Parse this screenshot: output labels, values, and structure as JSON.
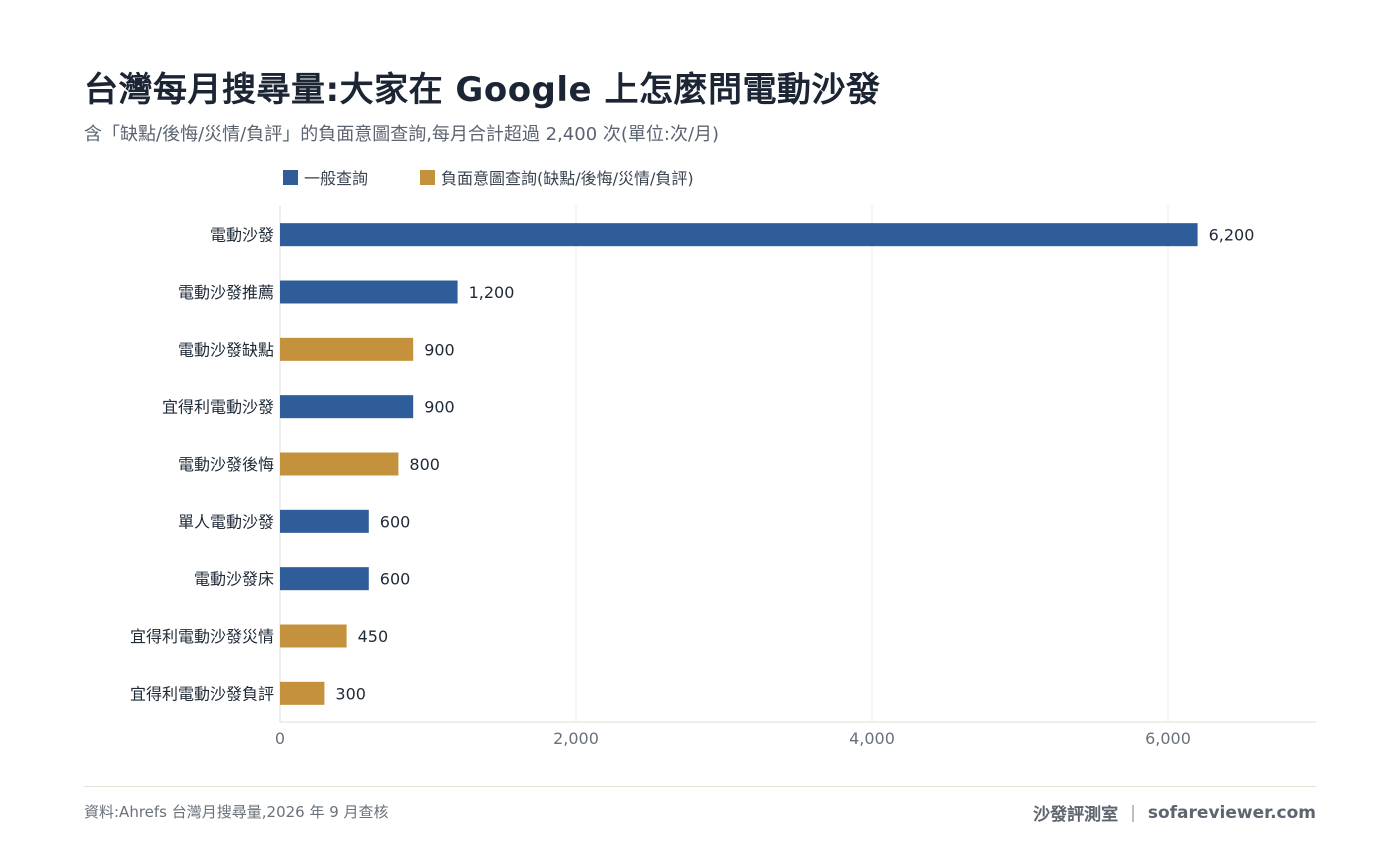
{
  "header": {
    "title": "台灣每月搜尋量:大家在 Google 上怎麼問電動沙發",
    "subtitle": "含「缺點/後悔/災情/負評」的負面意圖查詢,每月合計超過 2,400 次(單位:次/月)"
  },
  "legend": [
    {
      "label": "一般查詢",
      "color": "#2f5d9a"
    },
    {
      "label": "負面意圖查詢(缺點/後悔/災情/負評)",
      "color": "#c4913c"
    }
  ],
  "chart_data": {
    "type": "bar",
    "orientation": "horizontal",
    "title": "台灣每月搜尋量:大家在 Google 上怎麼問電動沙發",
    "xlim": [
      0,
      7000
    ],
    "x_ticks": [
      0,
      2000,
      4000,
      6000
    ],
    "x_tick_labels": [
      "0",
      "2,000",
      "4,000",
      "6,000"
    ],
    "grid": "vertical",
    "legend_position": "top-left",
    "categories": [
      "電動沙發",
      "電動沙發推薦",
      "電動沙發缺點",
      "宜得利電動沙發",
      "電動沙發後悔",
      "單人電動沙發",
      "電動沙發床",
      "宜得利電動沙發災情",
      "宜得利電動沙發負評"
    ],
    "values": [
      6200,
      1200,
      900,
      900,
      800,
      600,
      600,
      450,
      300
    ],
    "value_labels": [
      "6,200",
      "1,200",
      "900",
      "900",
      "800",
      "600",
      "600",
      "450",
      "300"
    ],
    "groups": [
      "一般查詢",
      "一般查詢",
      "負面意圖查詢(缺點/後悔/災情/負評)",
      "一般查詢",
      "負面意圖查詢(缺點/後悔/災情/負評)",
      "一般查詢",
      "一般查詢",
      "負面意圖查詢(缺點/後悔/災情/負評)",
      "負面意圖查詢(缺點/後悔/災情/負評)"
    ]
  },
  "footer": {
    "source": "資料:Ahrefs 台灣月搜尋量,2026 年 9 月查核",
    "brand": "沙發評測室",
    "separator": "|",
    "site": "sofareviewer.com"
  }
}
